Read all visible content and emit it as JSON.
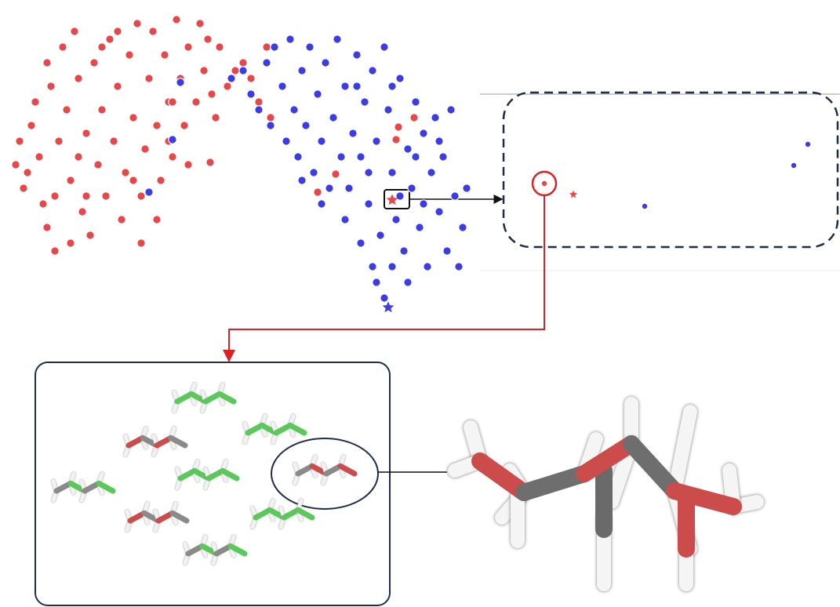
{
  "chart_data": [
    {
      "type": "scatter",
      "xlim": [
        0,
        590
      ],
      "ylim": [
        0,
        385
      ],
      "series": [
        {
          "color": "#e8474a",
          "marker": "circle",
          "x": [
            10,
            15,
            20,
            30,
            35,
            40,
            45,
            50,
            55,
            60,
            65,
            70,
            75,
            80,
            85,
            90,
            95,
            100,
            105,
            110,
            115,
            120,
            125,
            130,
            135,
            140,
            145,
            150,
            155,
            160,
            165,
            170,
            175,
            180,
            185,
            190,
            195,
            200,
            205,
            210,
            215,
            220,
            225,
            230,
            240,
            245,
            250,
            255,
            260,
            265,
            270,
            280,
            290,
            300,
            310,
            320,
            330,
            335,
            50,
            120,
            170,
            80,
            100,
            190,
            25,
            258,
            205,
            395,
            418,
            495,
            498,
            518,
            160,
            230,
            140,
            60,
            90,
            210
          ],
          "values": [
            190,
            220,
            160,
            240,
            270,
            200,
            140,
            110,
            290,
            80,
            220,
            340,
            260,
            170,
            360,
            300,
            130,
            230,
            100,
            320,
            190,
            260,
            150,
            350,
            220,
            290,
            120,
            180,
            330,
            250,
            370,
            150,
            210,
            300,
            360,
            240,
            170,
            330,
            270,
            200,
            375,
            300,
            240,
            340,
            270,
            370,
            310,
            350,
            280,
            250,
            340,
            290,
            310,
            320,
            300,
            270,
            340,
            250,
            320,
            340,
            90,
            90,
            150,
            120,
            180,
            193,
            220,
            155,
            178,
            222,
            238,
            250,
            170,
            190,
            360,
            150,
            200,
            270
          ]
        },
        {
          "color": "#3c3ce6",
          "marker": "circle",
          "x": [
            285,
            300,
            310,
            320,
            330,
            335,
            340,
            350,
            355,
            360,
            365,
            370,
            375,
            380,
            385,
            390,
            395,
            400,
            405,
            410,
            415,
            420,
            425,
            430,
            435,
            440,
            445,
            450,
            455,
            460,
            465,
            470,
            475,
            480,
            485,
            490,
            495,
            500,
            505,
            510,
            515,
            520,
            525,
            530,
            535,
            540,
            545,
            550,
            555,
            560,
            565,
            570,
            575,
            580,
            585,
            470,
            480,
            465,
            490,
            510,
            220,
            210,
            180,
            550,
            520,
            450,
            500,
            460,
            530,
            490,
            445,
            375,
            400,
            430
          ],
          "values": [
            300,
            310,
            280,
            260,
            320,
            240,
            340,
            290,
            220,
            350,
            260,
            200,
            310,
            240,
            340,
            180,
            280,
            220,
            320,
            160,
            250,
            350,
            200,
            290,
            160,
            230,
            330,
            200,
            270,
            140,
            310,
            220,
            100,
            340,
            260,
            180,
            120,
            300,
            80,
            210,
            160,
            270,
            110,
            230,
            60,
            180,
            250,
            130,
            200,
            80,
            260,
            150,
            60,
            110,
            160,
            40,
            20,
            60,
            60,
            40,
            295,
            222,
            155,
            220,
            200,
            90,
            150,
            180,
            140,
            290,
            290,
            170,
            140,
            120
          ]
        },
        {
          "color": "#e8474a",
          "marker": "star",
          "x": [
            490
          ],
          "values": [
            145
          ]
        },
        {
          "color": "#3c3ce6",
          "marker": "star",
          "x": [
            485
          ],
          "values": [
            8
          ]
        }
      ]
    },
    {
      "type": "scatter",
      "xlim": [
        0,
        428
      ],
      "ylim": [
        0,
        197
      ],
      "series": [
        {
          "color": "#e8474a",
          "marker": "circle",
          "x": [
            52
          ],
          "values": [
            81
          ]
        },
        {
          "color": "#e8474a",
          "marker": "star",
          "x": [
            89
          ],
          "values": [
            67
          ]
        },
        {
          "color": "#3c3ce6",
          "marker": "circle",
          "x": [
            180,
            370,
            388
          ],
          "values": [
            52,
            104,
            131
          ]
        }
      ]
    }
  ]
}
